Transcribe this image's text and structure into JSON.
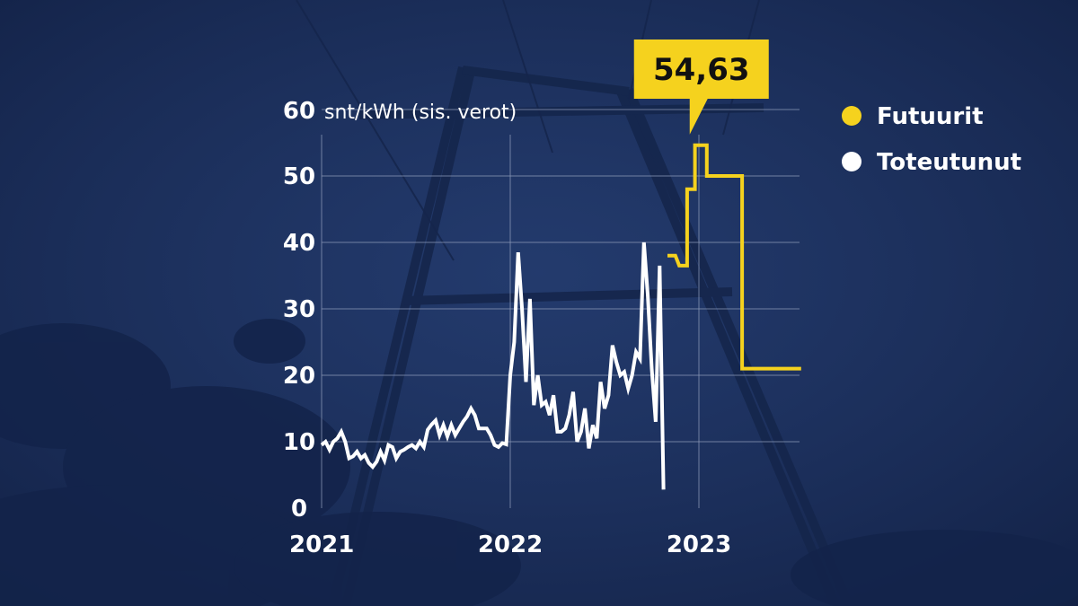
{
  "colors": {
    "background": "#1b2f5e",
    "futures": "#f5d21e",
    "actual": "#ffffff",
    "grid": "#8d9ab8"
  },
  "chart_data": {
    "type": "line",
    "x_unit": "months since January 2021",
    "ylabel_number": "60",
    "ylabel_unit": "snt/kWh (sis. verot)",
    "ylim": [
      0,
      60
    ],
    "yticks": [
      "0",
      "10",
      "20",
      "30",
      "40",
      "50"
    ],
    "xlim": [
      0,
      30.5
    ],
    "xticks": [
      {
        "label": "2021",
        "x": 0
      },
      {
        "label": "2022",
        "x": 12
      },
      {
        "label": "2023",
        "x": 24
      }
    ],
    "grid": true,
    "legend": {
      "position": "top-right",
      "entries": [
        {
          "name": "Futuurit",
          "color": "#f5d21e"
        },
        {
          "name": "Toteutunut",
          "color": "#ffffff"
        }
      ]
    },
    "annotation": {
      "text": "54,63",
      "x": 23.3,
      "y": 54.63
    },
    "series": [
      {
        "name": "Toteutunut",
        "color": "#ffffff",
        "points": [
          [
            0,
            9.5
          ],
          [
            0.25,
            10
          ],
          [
            0.5,
            8.8
          ],
          [
            0.75,
            10
          ],
          [
            1.0,
            10.5
          ],
          [
            1.25,
            11.5
          ],
          [
            1.5,
            10
          ],
          [
            1.75,
            7.5
          ],
          [
            2.0,
            7.8
          ],
          [
            2.25,
            8.5
          ],
          [
            2.5,
            7.5
          ],
          [
            2.75,
            8
          ],
          [
            3.0,
            6.8
          ],
          [
            3.25,
            6.2
          ],
          [
            3.5,
            7
          ],
          [
            3.75,
            8.5
          ],
          [
            4.0,
            7.2
          ],
          [
            4.25,
            9.5
          ],
          [
            4.5,
            9.2
          ],
          [
            4.75,
            7.5
          ],
          [
            5.0,
            8.5
          ],
          [
            5.25,
            8.8
          ],
          [
            5.5,
            9.2
          ],
          [
            5.75,
            9.5
          ],
          [
            6.0,
            9
          ],
          [
            6.25,
            10
          ],
          [
            6.5,
            9.2
          ],
          [
            6.75,
            11.8
          ],
          [
            7.0,
            12.6
          ],
          [
            7.25,
            13.2
          ],
          [
            7.5,
            11
          ],
          [
            7.75,
            12.5
          ],
          [
            8.0,
            10.8
          ],
          [
            8.25,
            12.5
          ],
          [
            8.5,
            11
          ],
          [
            8.75,
            12
          ],
          [
            9.0,
            13
          ],
          [
            9.25,
            13.8
          ],
          [
            9.5,
            15
          ],
          [
            9.75,
            14
          ],
          [
            10.0,
            12
          ],
          [
            10.25,
            12
          ],
          [
            10.5,
            12
          ],
          [
            10.75,
            11
          ],
          [
            11.0,
            9.5
          ],
          [
            11.25,
            9.2
          ],
          [
            11.5,
            9.8
          ],
          [
            11.75,
            9.6
          ],
          [
            12.0,
            20
          ],
          [
            12.25,
            25
          ],
          [
            12.5,
            38.5
          ],
          [
            12.75,
            30
          ],
          [
            13.0,
            19
          ],
          [
            13.25,
            31.5
          ],
          [
            13.5,
            15.5
          ],
          [
            13.75,
            20
          ],
          [
            14.0,
            15.5
          ],
          [
            14.25,
            16
          ],
          [
            14.5,
            14
          ],
          [
            14.75,
            17
          ],
          [
            15.0,
            11.5
          ],
          [
            15.25,
            11.5
          ],
          [
            15.5,
            12
          ],
          [
            15.75,
            14
          ],
          [
            16.0,
            17.5
          ],
          [
            16.25,
            10
          ],
          [
            16.5,
            11.5
          ],
          [
            16.75,
            15
          ],
          [
            17.0,
            9
          ],
          [
            17.25,
            12.5
          ],
          [
            17.5,
            10.5
          ],
          [
            17.75,
            19
          ],
          [
            18.0,
            15
          ],
          [
            18.25,
            17
          ],
          [
            18.5,
            24.5
          ],
          [
            18.75,
            22
          ],
          [
            19.0,
            20
          ],
          [
            19.25,
            20.5
          ],
          [
            19.5,
            18
          ],
          [
            19.75,
            20
          ],
          [
            20.0,
            23.5
          ],
          [
            20.25,
            22.5
          ],
          [
            20.5,
            40
          ],
          [
            20.75,
            32
          ],
          [
            21.0,
            21
          ],
          [
            21.25,
            13
          ],
          [
            21.5,
            36.5
          ],
          [
            21.75,
            2.8
          ]
        ]
      },
      {
        "name": "Futuurit",
        "color": "#f5d21e",
        "points": [
          [
            22.0,
            38
          ],
          [
            22.5,
            38
          ],
          [
            22.75,
            36.5
          ],
          [
            23.25,
            36.5
          ],
          [
            23.25,
            48
          ],
          [
            23.75,
            48
          ],
          [
            23.75,
            54.63
          ],
          [
            24.5,
            54.63
          ],
          [
            24.5,
            50
          ],
          [
            26.75,
            50
          ],
          [
            26.75,
            21
          ],
          [
            30.5,
            21
          ]
        ]
      }
    ]
  }
}
